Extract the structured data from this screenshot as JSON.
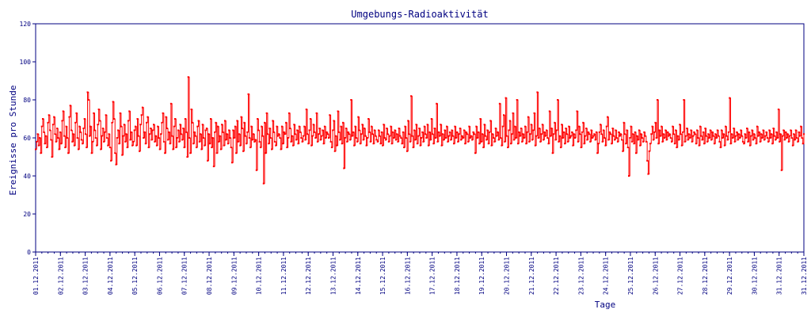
{
  "chart_data": {
    "type": "line",
    "title": "Umgebungs-Radioaktivität",
    "xlabel": "Tage",
    "ylabel": "Ereignisse pro Stunde",
    "ylim": [
      0,
      120
    ],
    "y_ticks": [
      "0",
      "20",
      "40",
      "60",
      "80",
      "100",
      "120"
    ],
    "x_ticks": [
      "01.12.2011",
      "02.12.2011",
      "03.12.2011",
      "04.12.2011",
      "05.12.2011",
      "06.12.2011",
      "07.12.2011",
      "08.12.2011",
      "09.12.2011",
      "10.12.2011",
      "11.12.2011",
      "12.12.2011",
      "13.12.2011",
      "14.12.2011",
      "15.12.2011",
      "16.12.2011",
      "17.12.2011",
      "18.12.2011",
      "19.12.2011",
      "20.12.2011",
      "21.12.2011",
      "22.12.2011",
      "23.12.2011",
      "24.12.2011",
      "25.12.2011",
      "26.12.2011",
      "27.12.2011",
      "28.12.2011",
      "29.12.2011",
      "30.12.2011",
      "31.12.2011",
      "31.12.2011"
    ],
    "grid": false,
    "colors": {
      "series": "#ff0000",
      "axes": "#000080",
      "text": "#000080"
    },
    "series": [
      {
        "values": [
          [
            54,
            58,
            62,
            56,
            60,
            52,
            66,
            70,
            63,
            57,
            61,
            55,
            68,
            72,
            64,
            59,
            50,
            67,
            71,
            62,
            58,
            65,
            60,
            54
          ],
          [
            63,
            57,
            69,
            74,
            61,
            55,
            66,
            60,
            52,
            71,
            77,
            64,
            58,
            62,
            56,
            68,
            73,
            60,
            54,
            66,
            63,
            59,
            57,
            65
          ],
          [
            70,
            62,
            55,
            84,
            80,
            61,
            66,
            52,
            58,
            73,
            64,
            60,
            56,
            67,
            75,
            69,
            54,
            61,
            65,
            58,
            63,
            72,
            60,
            56
          ],
          [
            62,
            55,
            48,
            68,
            79,
            70,
            52,
            46,
            60,
            64,
            57,
            73,
            66,
            51,
            61,
            67,
            58,
            62,
            55,
            69,
            74,
            59,
            63,
            56
          ],
          [
            58,
            64,
            66,
            56,
            70,
            61,
            53,
            67,
            72,
            76,
            60,
            63,
            57,
            68,
            71,
            55,
            62,
            65,
            59,
            64,
            67,
            58,
            61,
            56
          ],
          [
            66,
            60,
            54,
            62,
            68,
            73,
            58,
            52,
            71,
            65,
            59,
            63,
            57,
            78,
            61,
            54,
            66,
            70,
            55,
            60,
            64,
            58,
            67,
            62
          ],
          [
            59,
            65,
            55,
            70,
            63,
            50,
            92,
            60,
            52,
            75,
            68,
            57,
            63,
            61,
            55,
            66,
            69,
            58,
            62,
            54,
            67,
            60,
            56,
            64
          ],
          [
            65,
            48,
            62,
            57,
            70,
            55,
            60,
            45,
            63,
            68,
            52,
            66,
            58,
            61,
            54,
            67,
            63,
            56,
            69,
            59,
            62,
            57,
            64,
            60
          ],
          [
            55,
            47,
            64,
            60,
            66,
            52,
            69,
            58,
            62,
            56,
            71,
            65,
            53,
            68,
            61,
            57,
            63,
            83,
            60,
            55,
            66,
            59,
            62,
            58
          ],
          [
            59,
            43,
            70,
            64,
            58,
            55,
            66,
            61,
            36,
            68,
            52,
            73,
            62,
            57,
            65,
            60,
            54,
            69,
            63,
            58,
            56,
            66,
            61,
            62
          ],
          [
            60,
            54,
            66,
            57,
            63,
            62,
            68,
            55,
            60,
            73,
            65,
            58,
            61,
            56,
            67,
            62,
            59,
            64,
            57,
            66,
            63,
            60,
            58,
            61
          ],
          [
            66,
            59,
            75,
            62,
            57,
            64,
            70,
            56,
            61,
            67,
            63,
            60,
            73,
            58,
            62,
            65,
            59,
            61,
            64,
            57,
            66,
            60,
            63,
            62
          ],
          [
            60,
            72,
            58,
            55,
            64,
            69,
            53,
            61,
            56,
            74,
            63,
            59,
            66,
            57,
            68,
            44,
            60,
            65,
            58,
            63,
            62,
            59,
            80,
            61
          ],
          [
            63,
            56,
            66,
            60,
            58,
            71,
            64,
            57,
            62,
            67,
            59,
            65,
            61,
            56,
            60,
            70,
            63,
            58,
            66,
            62,
            57,
            64,
            61,
            59
          ],
          [
            58,
            64,
            61,
            57,
            63,
            56,
            67,
            60,
            59,
            65,
            62,
            58,
            61,
            66,
            57,
            63,
            60,
            64,
            59,
            62,
            58,
            65,
            61,
            60
          ],
          [
            57,
            63,
            55,
            66,
            60,
            53,
            69,
            62,
            58,
            82,
            61,
            55,
            64,
            59,
            67,
            57,
            61,
            65,
            56,
            60,
            63,
            58,
            66,
            62
          ],
          [
            60,
            67,
            56,
            63,
            59,
            70,
            62,
            57,
            65,
            60,
            78,
            58,
            63,
            61,
            67,
            56,
            62,
            59,
            64,
            60,
            66,
            58,
            61,
            63
          ],
          [
            59,
            64,
            61,
            57,
            66,
            60,
            63,
            58,
            62,
            65,
            59,
            61,
            60,
            64,
            57,
            63,
            62,
            58,
            66,
            60,
            61,
            59,
            63,
            62
          ],
          [
            52,
            66,
            60,
            63,
            57,
            70,
            58,
            62,
            55,
            67,
            61,
            59,
            64,
            57,
            63,
            69,
            56,
            62,
            60,
            58,
            65,
            61,
            63,
            59
          ],
          [
            78,
            60,
            56,
            66,
            72,
            58,
            81,
            61,
            55,
            64,
            69,
            57,
            62,
            73,
            59,
            66,
            60,
            80,
            57,
            63,
            61,
            65,
            58,
            62
          ],
          [
            60,
            66,
            57,
            63,
            71,
            58,
            62,
            67,
            59,
            64,
            73,
            56,
            61,
            84,
            60,
            65,
            58,
            62,
            67,
            59,
            63,
            61,
            64,
            60
          ],
          [
            57,
            74,
            61,
            65,
            52,
            62,
            68,
            59,
            64,
            80,
            58,
            61,
            55,
            67,
            60,
            63,
            57,
            65,
            62,
            58,
            66,
            60,
            61,
            63
          ],
          [
            56,
            62,
            60,
            64,
            74,
            58,
            66,
            62,
            55,
            63,
            68,
            57,
            61,
            65,
            59,
            63,
            62,
            58,
            64,
            60,
            61,
            62,
            59,
            63
          ],
          [
            52,
            57,
            63,
            67,
            62,
            58,
            64,
            60,
            56,
            66,
            71,
            59,
            63,
            62,
            57,
            65,
            61,
            59,
            64,
            60,
            58,
            63,
            61,
            62
          ],
          [
            59,
            53,
            68,
            62,
            57,
            64,
            55,
            40,
            60,
            66,
            58,
            62,
            57,
            63,
            52,
            61,
            59,
            64,
            56,
            62,
            60,
            58,
            63,
            61
          ],
          [
            58,
            48,
            41,
            53,
            57,
            62,
            66,
            59,
            63,
            68,
            60,
            80,
            57,
            64,
            61,
            66,
            58,
            62,
            60,
            64,
            59,
            63,
            61,
            62
          ],
          [
            60,
            58,
            66,
            62,
            57,
            64,
            55,
            61,
            59,
            67,
            62,
            56,
            63,
            80,
            58,
            61,
            65,
            59,
            62,
            60,
            64,
            58,
            61,
            63
          ],
          [
            62,
            57,
            64,
            60,
            56,
            66,
            61,
            59,
            63,
            57,
            65,
            61,
            58,
            62,
            60,
            64,
            59,
            63,
            61,
            57,
            62,
            60,
            64,
            61
          ],
          [
            58,
            55,
            64,
            60,
            62,
            56,
            66,
            61,
            59,
            63,
            81,
            57,
            62,
            60,
            65,
            58,
            61,
            63,
            59,
            62,
            60,
            64,
            61,
            58
          ],
          [
            57,
            62,
            60,
            65,
            58,
            63,
            56,
            61,
            64,
            59,
            62,
            60,
            57,
            66,
            61,
            63,
            58,
            62,
            60,
            64,
            59,
            61,
            63,
            60
          ],
          [
            58,
            64,
            60,
            62,
            57,
            65,
            61,
            59,
            63,
            60,
            75,
            58,
            62,
            43,
            61,
            64,
            59,
            63,
            60,
            62,
            58,
            61,
            64,
            60
          ],
          [
            56,
            62,
            59,
            64,
            60,
            58,
            63,
            61,
            66,
            60,
            57,
            62
          ]
        ]
      }
    ]
  }
}
